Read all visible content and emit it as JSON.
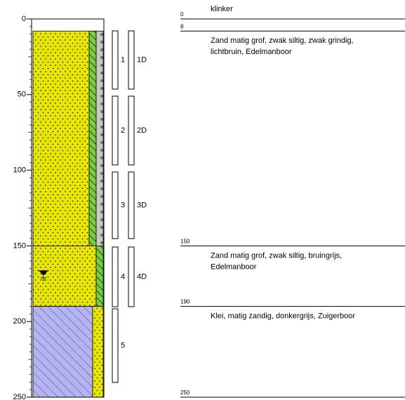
{
  "depth_axis": {
    "ticks": [
      0,
      50,
      100,
      150,
      200,
      250
    ],
    "lim": [
      0,
      250
    ]
  },
  "layers": [
    {
      "top": 0,
      "bottom": 8,
      "description": [
        "klinker"
      ]
    },
    {
      "top": 8,
      "bottom": 150,
      "description": [
        "Zand matig grof, zwak siltig, zwak grindig,",
        "lichtbruin,  Edelmanboor"
      ]
    },
    {
      "top": 150,
      "bottom": 190,
      "description": [
        "Zand matig grof, zwak siltig, bruingrijs,",
        "Edelmanboor"
      ]
    },
    {
      "top": 190,
      "bottom": 250,
      "description": [
        "Klei, matig zandig, donkergrijs, Zuigerboor"
      ]
    }
  ],
  "samples": [
    {
      "label": "1",
      "duplicate": "1D"
    },
    {
      "label": "2",
      "duplicate": "2D"
    },
    {
      "label": "3",
      "duplicate": "3D"
    },
    {
      "label": "4",
      "duplicate": "4D"
    },
    {
      "label": "5"
    }
  ]
}
